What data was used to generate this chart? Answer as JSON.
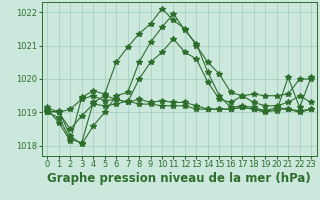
{
  "title": "Graphe pression niveau de la mer (hPa)",
  "x": [
    0,
    1,
    2,
    3,
    4,
    5,
    6,
    7,
    8,
    9,
    10,
    11,
    12,
    13,
    14,
    15,
    16,
    17,
    18,
    19,
    20,
    21,
    22,
    23
  ],
  "series": [
    [
      1019.0,
      1019.05,
      1018.3,
      1018.05,
      1018.6,
      1019.0,
      1019.5,
      1019.6,
      1020.5,
      1021.1,
      1021.55,
      1021.95,
      1021.45,
      1021.05,
      1020.2,
      1019.5,
      1019.15,
      1019.2,
      1019.15,
      1019.05,
      1019.05,
      1020.05,
      1019.15,
      1020.05
    ],
    [
      1019.15,
      1019.0,
      1019.1,
      1019.4,
      1019.5,
      1019.35,
      1019.4,
      1019.3,
      1019.4,
      1019.3,
      1019.35,
      1019.3,
      1019.3,
      1019.2,
      1019.1,
      1019.1,
      1019.1,
      1019.15,
      1019.1,
      1019.0,
      1019.1,
      1019.1,
      1019.0,
      1019.1
    ],
    [
      1019.1,
      1018.7,
      1018.15,
      1019.45,
      1019.65,
      1019.55,
      1020.5,
      1020.95,
      1021.35,
      1021.65,
      1022.1,
      1021.75,
      1021.5,
      1021.0,
      1020.5,
      1020.15,
      1019.6,
      1019.5,
      1019.55,
      1019.5,
      1019.5,
      1019.55,
      1020.0,
      1020.0
    ],
    [
      1019.0,
      1018.85,
      1018.2,
      1018.1,
      1019.3,
      1019.5,
      1019.4,
      1019.3,
      1020.0,
      1020.5,
      1020.8,
      1021.2,
      1020.8,
      1020.6,
      1019.9,
      1019.4,
      1019.3,
      1019.5,
      1019.3,
      1019.2,
      1019.2,
      1019.3,
      1019.5,
      1019.3
    ],
    [
      1019.05,
      1019.0,
      1018.5,
      1018.9,
      1019.25,
      1019.2,
      1019.25,
      1019.35,
      1019.25,
      1019.25,
      1019.2,
      1019.2,
      1019.2,
      1019.1,
      1019.1,
      1019.1,
      1019.1,
      1019.15,
      1019.1,
      1019.05,
      1019.15,
      1019.1,
      1019.05,
      1019.1
    ]
  ],
  "line_color": "#2d6e2d",
  "bg_color": "#cce8dc",
  "grid_color": "#a8d0c0",
  "ylim": [
    1017.7,
    1022.3
  ],
  "yticks": [
    1018,
    1019,
    1020,
    1021,
    1022
  ],
  "xticks": [
    0,
    1,
    2,
    3,
    4,
    5,
    6,
    7,
    8,
    9,
    10,
    11,
    12,
    13,
    14,
    15,
    16,
    17,
    18,
    19,
    20,
    21,
    22,
    23
  ],
  "marker": "*",
  "markersize": 4,
  "linewidth": 0.8,
  "title_fontsize": 8.5,
  "tick_fontsize": 6
}
